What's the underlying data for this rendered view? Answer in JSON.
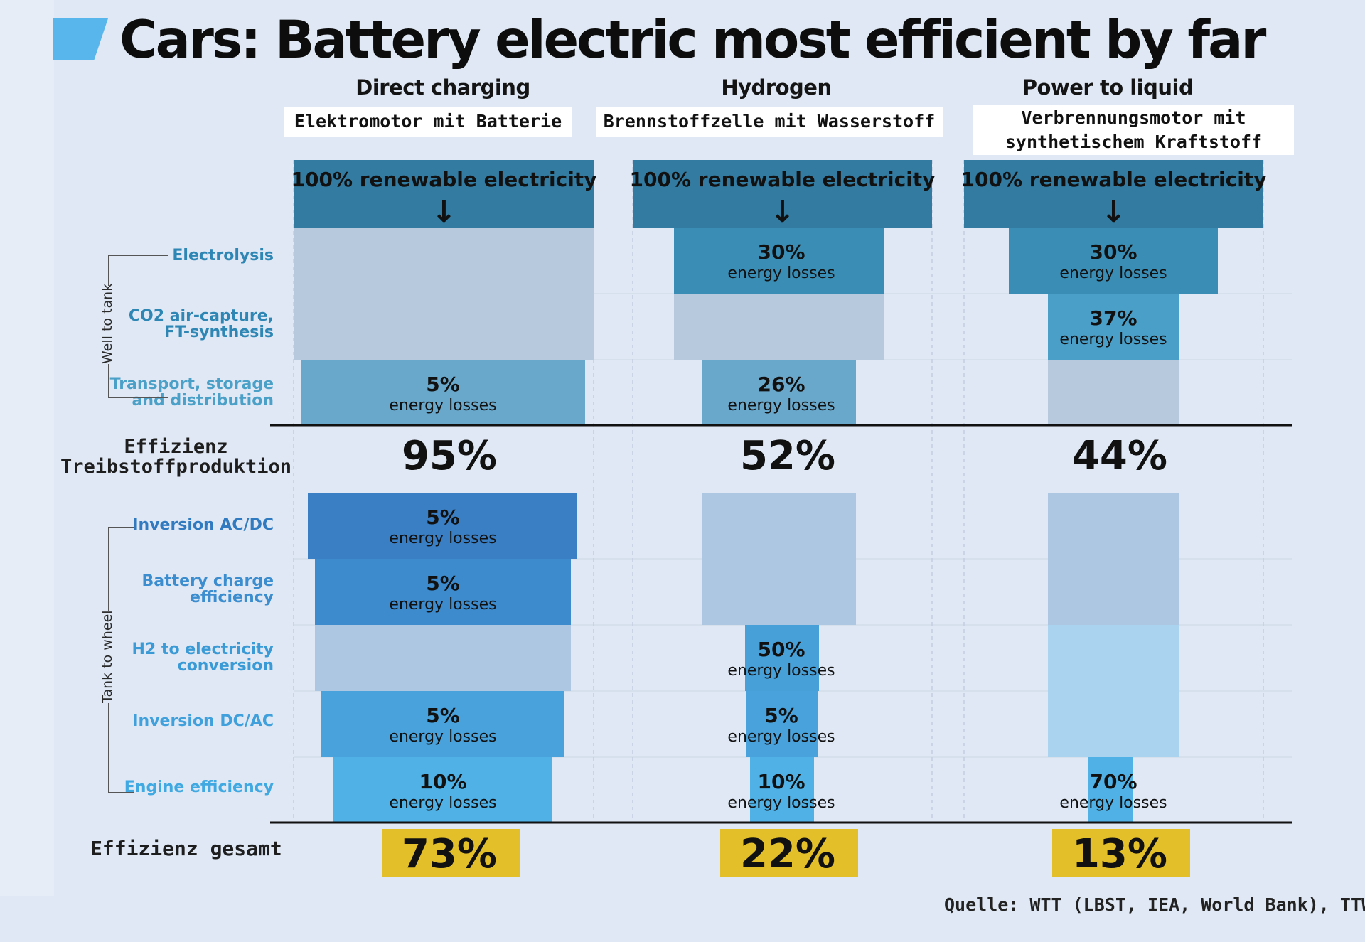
{
  "title": "Cars: Battery electric most efficient by far",
  "source": "Quelle: WTT (LBST, IEA, World Bank), TTW, T",
  "colors": {
    "header": "#337ba1",
    "electrolysis": "#3a8db5",
    "co2": "#4a9fc8",
    "transport": "#6aa8cb",
    "inv_acdc": "#3a7fc4",
    "battery": "#3d8bcc",
    "h2": "#48a0d8",
    "inv_dcac": "#4aa2dc",
    "engine": "#4fb1e6",
    "ghost_top": "#b6c9dd",
    "ghost_bottom": "#adc7e3",
    "ghost_light": "#a9d3ef",
    "highlight": "#e3bf2a"
  },
  "row_labels": [
    {
      "id": "electrolysis",
      "text": "Electrolysis",
      "color": "#2e86b4"
    },
    {
      "id": "co2",
      "text": "CO2 air-capture,\nFT-synthesis",
      "color": "#2e86b4"
    },
    {
      "id": "transport",
      "text": "Transport, storage\nand distribution",
      "color": "#4ba0c8"
    },
    {
      "id": "inv_acdc",
      "text": "Inversion AC/DC",
      "color": "#2f7ac0"
    },
    {
      "id": "battery",
      "text": "Battery charge\nefficiency",
      "color": "#3b8dcf"
    },
    {
      "id": "h2",
      "text": "H2 to electricity\nconversion",
      "color": "#3a9ad6"
    },
    {
      "id": "inv_dcac",
      "text": "Inversion DC/AC",
      "color": "#3fa0dc"
    },
    {
      "id": "engine",
      "text": "Engine efficiency",
      "color": "#41a9e2"
    }
  ],
  "group_labels": {
    "wtt": "Well to tank",
    "ttw": "Tank to wheel"
  },
  "efficiency_label": "Effizienz\nTreibstoffproduktion",
  "total_label": "Effizienz gesamt",
  "header_text": "100% renewable electricity",
  "header_arrow": "↓",
  "loss_caption": "energy losses",
  "columns": [
    {
      "name": "Direct charging",
      "subtitle": "Elektromotor mit Batterie"
    },
    {
      "name": "Hydrogen",
      "subtitle": "Brennstoffzelle mit Wasserstoff"
    },
    {
      "name": "Power to liquid",
      "subtitle": "Verbrennungsmotor mit\nsynthetischem Kraftstoff"
    }
  ],
  "chart_data": {
    "type": "bar",
    "title": "Cars: Battery electric most efficient by far",
    "starting_energy": "100% renewable electricity",
    "stages": [
      "Electrolysis",
      "CO2 air-capture, FT-synthesis",
      "Transport, storage and distribution",
      "Inversion AC/DC",
      "Battery charge efficiency",
      "H2 to electricity conversion",
      "Inversion DC/AC",
      "Engine efficiency"
    ],
    "series": [
      {
        "name": "Direct charging",
        "losses": [
          null,
          null,
          5,
          5,
          5,
          null,
          5,
          10
        ],
        "fuel_production_efficiency": "95%",
        "total_efficiency": "73%"
      },
      {
        "name": "Hydrogen",
        "losses": [
          30,
          null,
          26,
          null,
          null,
          50,
          5,
          10
        ],
        "fuel_production_efficiency": "52%",
        "total_efficiency": "22%"
      },
      {
        "name": "Power to liquid",
        "losses": [
          30,
          37,
          null,
          null,
          null,
          null,
          null,
          70
        ],
        "fuel_production_efficiency": "44%",
        "total_efficiency": "13%"
      }
    ]
  }
}
